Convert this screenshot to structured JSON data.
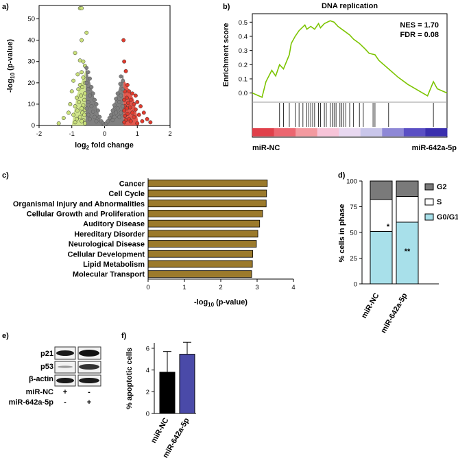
{
  "panels": {
    "a": "a)",
    "b": "b)",
    "c": "c)",
    "d": "d)",
    "e": "e)",
    "f": "f)"
  },
  "chart_data": [
    {
      "id": "a",
      "type": "scatter",
      "title": "",
      "xlabel_base": "log",
      "xlabel_sub": "2",
      "xlabel_rest": "fold change",
      "ylabel_base": "-log",
      "ylabel_sub": "10",
      "ylabel_rest": " (p-value)",
      "xlim": [
        -2,
        2
      ],
      "ylim": [
        0,
        55
      ],
      "xticks": [
        -2,
        -1,
        0,
        1,
        2
      ],
      "yticks": [
        0,
        10,
        20,
        30,
        40,
        50
      ],
      "colors": {
        "down": "#c9e07a",
        "up": "#e03b2e",
        "ns": "#808080"
      },
      "thresholds": {
        "down": -0.58,
        "up": 0.58
      },
      "series": [
        {
          "name": "down",
          "points": [
            [
              -0.75,
              55
            ],
            [
              -0.7,
              55
            ],
            [
              -0.55,
              43.5
            ],
            [
              -0.7,
              40
            ],
            [
              -0.9,
              34
            ],
            [
              -0.75,
              30.5
            ],
            [
              -0.65,
              30
            ],
            [
              -0.6,
              28
            ],
            [
              -0.7,
              25
            ],
            [
              -0.82,
              24
            ],
            [
              -0.65,
              22.5
            ],
            [
              -0.95,
              21
            ],
            [
              -0.6,
              20
            ],
            [
              -0.75,
              19
            ],
            [
              -0.68,
              18
            ],
            [
              -0.8,
              17
            ],
            [
              -1.0,
              16
            ],
            [
              -0.6,
              15
            ],
            [
              -0.72,
              14
            ],
            [
              -0.85,
              13
            ],
            [
              -0.62,
              12
            ],
            [
              -0.78,
              11
            ],
            [
              -1.05,
              10
            ],
            [
              -0.65,
              9.5
            ],
            [
              -0.9,
              9
            ],
            [
              -0.7,
              8
            ],
            [
              -0.6,
              7.5
            ],
            [
              -0.83,
              7
            ],
            [
              -1.1,
              6
            ],
            [
              -0.68,
              6
            ],
            [
              -0.95,
              5
            ],
            [
              -0.62,
              5
            ],
            [
              -0.75,
              4
            ],
            [
              -1.25,
              3.5
            ],
            [
              -0.85,
              3
            ],
            [
              -0.65,
              2.5
            ],
            [
              -0.7,
              2
            ],
            [
              -1.4,
              1
            ],
            [
              -0.9,
              1.5
            ],
            [
              -0.6,
              1
            ]
          ]
        },
        {
          "name": "up",
          "points": [
            [
              0.58,
              40
            ],
            [
              0.6,
              30
            ],
            [
              0.65,
              25.5
            ],
            [
              0.7,
              19
            ],
            [
              0.85,
              15
            ],
            [
              0.75,
              16
            ],
            [
              0.62,
              16
            ],
            [
              0.95,
              14
            ],
            [
              0.68,
              13
            ],
            [
              0.8,
              12
            ],
            [
              0.6,
              12
            ],
            [
              1.0,
              11
            ],
            [
              0.72,
              10.5
            ],
            [
              0.9,
              10
            ],
            [
              0.62,
              9
            ],
            [
              1.1,
              9
            ],
            [
              0.78,
              8.5
            ],
            [
              0.68,
              8
            ],
            [
              0.95,
              7.5
            ],
            [
              0.6,
              7
            ],
            [
              1.2,
              6
            ],
            [
              0.85,
              6
            ],
            [
              0.7,
              5.5
            ],
            [
              1.05,
              5
            ],
            [
              0.62,
              4.5
            ],
            [
              0.9,
              4
            ],
            [
              1.3,
              3
            ],
            [
              0.75,
              3
            ],
            [
              0.65,
              2.5
            ],
            [
              1.15,
              2
            ],
            [
              0.8,
              2
            ],
            [
              1.4,
              1.5
            ],
            [
              0.6,
              1.5
            ],
            [
              1.0,
              1
            ]
          ]
        },
        {
          "name": "ns",
          "points": [
            [
              -0.55,
              27
            ],
            [
              -0.5,
              25
            ],
            [
              -0.45,
              22
            ],
            [
              -0.55,
              20
            ],
            [
              -0.4,
              18
            ],
            [
              -0.5,
              17
            ],
            [
              -0.35,
              15
            ],
            [
              -0.45,
              14
            ],
            [
              -0.3,
              12
            ],
            [
              -0.5,
              11
            ],
            [
              -0.25,
              10
            ],
            [
              -0.4,
              9
            ],
            [
              -0.55,
              8
            ],
            [
              -0.2,
              7
            ],
            [
              -0.35,
              6.5
            ],
            [
              -0.5,
              5
            ],
            [
              -0.15,
              4
            ],
            [
              -0.3,
              4
            ],
            [
              -0.45,
              3
            ],
            [
              -0.1,
              2
            ],
            [
              -0.25,
              2
            ],
            [
              -0.05,
              1
            ],
            [
              0.0,
              0.5
            ],
            [
              0.05,
              1
            ],
            [
              0.1,
              2
            ],
            [
              0.25,
              2.5
            ],
            [
              0.15,
              3.5
            ],
            [
              0.3,
              4
            ],
            [
              0.45,
              4
            ],
            [
              0.2,
              5
            ],
            [
              0.35,
              6
            ],
            [
              0.5,
              6
            ],
            [
              0.25,
              7
            ],
            [
              0.4,
              8
            ],
            [
              0.55,
              9
            ],
            [
              0.3,
              9.5
            ],
            [
              0.45,
              11
            ],
            [
              0.35,
              12.5
            ],
            [
              0.5,
              14
            ],
            [
              0.4,
              15
            ],
            [
              0.55,
              17
            ],
            [
              0.48,
              19.5
            ],
            [
              0.56,
              21
            ],
            [
              0.5,
              23
            ]
          ]
        }
      ]
    },
    {
      "id": "b",
      "type": "line",
      "title": "DNA replication",
      "ylabel": "Enrichment score",
      "ylim": [
        -0.05,
        0.55
      ],
      "yticks": [
        "0.5",
        "0.4",
        "0.3",
        "0.2",
        "0.1",
        "0.0"
      ],
      "ytick_values": [
        0.5,
        0.4,
        0.3,
        0.2,
        0.1,
        0.0
      ],
      "nes": "NES = 1.70",
      "fdr": "FDR = 0.08",
      "left_label": "miR-NC",
      "right_label": "miR-642a-5p",
      "line_color": "#7cc400",
      "x": [
        0,
        0.05,
        0.07,
        0.1,
        0.12,
        0.14,
        0.16,
        0.19,
        0.2,
        0.22,
        0.24,
        0.27,
        0.28,
        0.3,
        0.32,
        0.34,
        0.35,
        0.37,
        0.4,
        0.42,
        0.44,
        0.46,
        0.48,
        0.5,
        0.52,
        0.55,
        0.58,
        0.6,
        0.63,
        0.65,
        0.7,
        0.75,
        0.8,
        0.85,
        0.9,
        0.93,
        0.95,
        1.0
      ],
      "y": [
        0.0,
        -0.03,
        0.08,
        0.16,
        0.12,
        0.2,
        0.17,
        0.27,
        0.35,
        0.4,
        0.44,
        0.48,
        0.45,
        0.47,
        0.45,
        0.49,
        0.46,
        0.49,
        0.51,
        0.5,
        0.47,
        0.45,
        0.43,
        0.41,
        0.38,
        0.35,
        0.31,
        0.28,
        0.27,
        0.23,
        0.17,
        0.11,
        0.06,
        0.02,
        -0.02,
        0.08,
        0.03,
        0.0
      ],
      "hits": [
        0.14,
        0.16,
        0.19,
        0.22,
        0.24,
        0.26,
        0.28,
        0.29,
        0.3,
        0.31,
        0.32,
        0.34,
        0.35,
        0.37,
        0.38,
        0.4,
        0.41,
        0.42,
        0.43,
        0.45,
        0.46,
        0.47,
        0.48,
        0.5,
        0.52,
        0.55,
        0.57,
        0.62,
        0.63,
        0.7,
        0.93
      ],
      "gradient": [
        "#e0404a",
        "#ec6670",
        "#f39aa0",
        "#f7c4d8",
        "#e8d8f0",
        "#c9c6ea",
        "#8e88d6",
        "#5a4fc4",
        "#3a2fae"
      ]
    },
    {
      "id": "c",
      "type": "bar",
      "orientation": "horizontal",
      "categories": [
        "Cancer",
        "Cell Cycle",
        "Organismal Injury and Abnormalities",
        "Cellular Growth and Proliferation",
        "Auditory Disease",
        "Hereditary Disorder",
        "Neurological Disease",
        "Cellular Development",
        "Lipid Metabolism",
        "Molecular Transport"
      ],
      "values": [
        3.28,
        3.26,
        3.25,
        3.15,
        3.07,
        3.02,
        2.98,
        2.88,
        2.87,
        2.85
      ],
      "xlabel_base": "-log",
      "xlabel_sub": "10",
      "xlabel_rest": " (p-value)",
      "xlim": [
        0,
        4
      ],
      "xticks": [
        0,
        1,
        2,
        3,
        4
      ],
      "bar_color": "#9b7a2c"
    },
    {
      "id": "d",
      "type": "bar",
      "stacked": true,
      "categories": [
        "miR-NC",
        "miR-642a-5p"
      ],
      "ylabel": "% cells in phase",
      "ylim": [
        0,
        100
      ],
      "yticks": [
        0,
        25,
        50,
        75,
        100
      ],
      "series": [
        {
          "name": "G0/G1",
          "values": [
            51,
            60
          ],
          "color": "#a8e0ea"
        },
        {
          "name": "S",
          "values": [
            31,
            25
          ],
          "color": "#ffffff"
        },
        {
          "name": "G2",
          "values": [
            18,
            15
          ],
          "color": "#7a7a7a"
        }
      ],
      "annotations": {
        "s_sig": "*",
        "g1_sig": "**"
      },
      "legend": [
        "G2",
        "S",
        "G0/G1"
      ]
    },
    {
      "id": "f",
      "type": "bar",
      "categories": [
        "miR-NC",
        "miR-642a-5p"
      ],
      "values": [
        3.8,
        5.45
      ],
      "errors": [
        1.9,
        1.1
      ],
      "colors": [
        "#000000",
        "#4a4aa8"
      ],
      "ylabel": "% apoptotic cells",
      "ylim": [
        0,
        6.5
      ],
      "yticks": [
        0,
        2,
        4,
        6
      ]
    }
  ],
  "blot": {
    "rows": [
      "p21",
      "p53",
      "β-actin"
    ],
    "conditions": [
      {
        "label": "miR-NC",
        "values": [
          "+",
          "-"
        ]
      },
      {
        "label": "miR-642a-5p",
        "values": [
          "-",
          "+"
        ]
      }
    ]
  }
}
